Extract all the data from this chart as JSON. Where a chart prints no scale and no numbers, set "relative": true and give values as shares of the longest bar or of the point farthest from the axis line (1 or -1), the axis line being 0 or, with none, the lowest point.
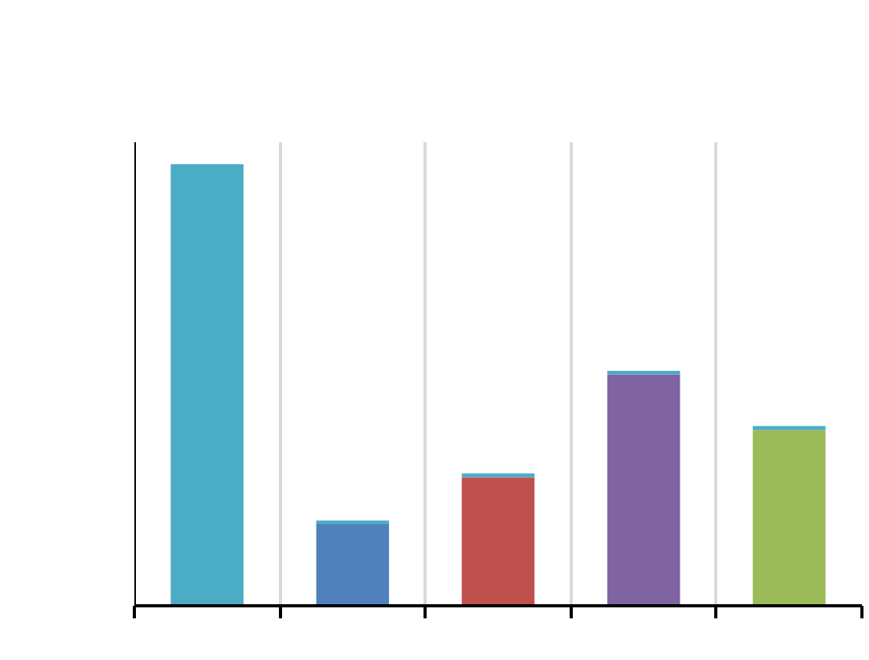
{
  "chart_data": {
    "type": "bar",
    "stacked": true,
    "relative": true,
    "grid": "x",
    "categories": [
      null,
      null,
      null,
      null,
      null
    ],
    "series": [
      {
        "color": "#4f81bd",
        "values": [
          null,
          0.185,
          null,
          null,
          null
        ]
      },
      {
        "color": "#c0504d",
        "values": [
          null,
          null,
          0.291,
          null,
          null
        ]
      },
      {
        "color": "#8064a2",
        "values": [
          null,
          null,
          null,
          0.524,
          null
        ]
      },
      {
        "color": "#9bbb59",
        "values": [
          null,
          null,
          null,
          null,
          0.398
        ]
      },
      {
        "color": "#4bacc6",
        "values": [
          1.0,
          0.008,
          0.009,
          0.008,
          0.009
        ]
      }
    ]
  }
}
